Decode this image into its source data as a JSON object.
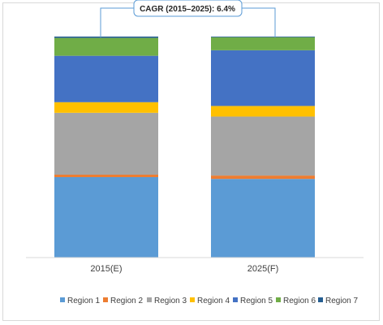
{
  "chart_data": {
    "type": "bar",
    "stacked": true,
    "normalized": true,
    "categories": [
      "2015(E)",
      "2025(F)"
    ],
    "series": [
      {
        "name": "Region 1",
        "color": "#5b9bd5",
        "values": [
          36.4,
          35.6
        ]
      },
      {
        "name": "Region 2",
        "color": "#ed7d31",
        "values": [
          1.1,
          1.5
        ]
      },
      {
        "name": "Region 3",
        "color": "#a5a5a5",
        "values": [
          28.0,
          26.7
        ]
      },
      {
        "name": "Region 4",
        "color": "#ffc000",
        "values": [
          4.8,
          4.8
        ]
      },
      {
        "name": "Region 5",
        "color": "#4472c4",
        "values": [
          21.0,
          25.2
        ]
      },
      {
        "name": "Region 6",
        "color": "#70ad47",
        "values": [
          8.1,
          5.9
        ]
      },
      {
        "name": "Region 7",
        "color": "#255e91",
        "values": [
          0.6,
          0.3
        ]
      }
    ],
    "ylim": [
      0,
      100
    ],
    "grid": false,
    "legend_position": "bottom",
    "annotation": "CAGR (2015–2025): 6.4%"
  }
}
